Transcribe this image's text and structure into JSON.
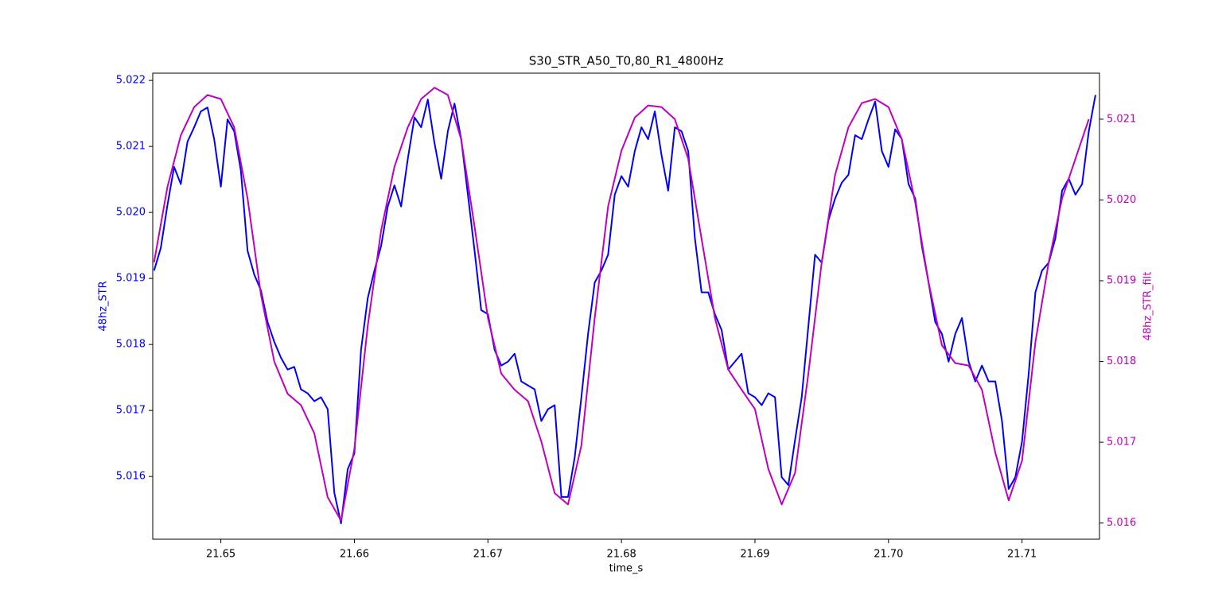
{
  "chart_data": {
    "type": "line",
    "title": "S30_STR_A50_T0,80_R1_4800Hz",
    "xlabel": "time_s",
    "ylabel": "48hz_STR",
    "y2label": "48hz_STR_filt",
    "xlim": [
      21.6449,
      21.7158
    ],
    "xticks": [
      21.65,
      21.66,
      21.67,
      21.68,
      21.69,
      {
        "value": 21.7,
        "label": "21.70"
      },
      21.71
    ],
    "ylim": [
      5.01505,
      5.02211
    ],
    "yticks": [
      5.016,
      5.017,
      5.018,
      5.019,
      {
        "value": 5.02,
        "label": "5.020"
      },
      5.021,
      5.022
    ],
    "ytick_color": "#0000ff",
    "y2lim": [
      5.0158,
      5.02157
    ],
    "y2ticks": [
      5.016,
      5.017,
      5.018,
      5.019,
      {
        "value": 5.02,
        "label": "5.020"
      },
      5.021
    ],
    "y2tick_color": "#bf00bf",
    "grid": false,
    "series": [
      {
        "color": "#0000ff",
        "x": [
          21.645,
          21.6455,
          21.646,
          21.6465,
          21.647,
          21.6475,
          21.648,
          21.6485,
          21.649,
          21.6495,
          21.65,
          21.6505,
          21.651,
          21.6515,
          21.652,
          21.6525,
          21.653,
          21.6535,
          21.654,
          21.6545,
          21.655,
          21.6555,
          21.656,
          21.6565,
          21.657,
          21.6575,
          21.658,
          21.6585,
          21.659,
          21.6595,
          21.66,
          21.6605,
          21.661,
          21.6615,
          21.662,
          21.6625,
          21.663,
          21.6635,
          21.664,
          21.6645,
          21.665,
          21.6655,
          21.666,
          21.6665,
          21.667,
          21.6675,
          21.668,
          21.6685,
          21.669,
          21.6695,
          21.67,
          21.6705,
          21.671,
          21.6715,
          21.672,
          21.6725,
          21.673,
          21.6735,
          21.674,
          21.6745,
          21.675,
          21.6755,
          21.676,
          21.6765,
          21.677,
          21.6775,
          21.678,
          21.6785,
          21.679,
          21.6795,
          21.68,
          21.6805,
          21.681,
          21.6815,
          21.682,
          21.6825,
          21.683,
          21.6835,
          21.684,
          21.6845,
          21.685,
          21.6855,
          21.686,
          21.6865,
          21.687,
          21.6875,
          21.688,
          21.6885,
          21.689,
          21.6895,
          21.69,
          21.6905,
          21.691,
          21.6915,
          21.692,
          21.6925,
          21.693,
          21.6935,
          21.694,
          21.6945,
          21.695,
          21.6955,
          21.696,
          21.6965,
          21.697,
          21.6975,
          21.698,
          21.6985,
          21.699,
          21.6995,
          21.7,
          21.7005,
          21.701,
          21.7015,
          21.702,
          21.7025,
          21.703,
          21.7035,
          21.704,
          21.7045,
          21.705,
          21.7055,
          21.706,
          21.7065,
          21.707,
          21.7075,
          21.708,
          21.7085,
          21.709,
          21.7095,
          21.71,
          21.7105,
          21.711,
          21.7115,
          21.712,
          21.7125,
          21.713,
          21.7135,
          21.714,
          21.7145,
          21.715,
          21.7155
        ],
        "values": [
          5.01912,
          5.01946,
          5.02011,
          5.02069,
          5.02043,
          5.02107,
          5.02129,
          5.02153,
          5.02159,
          5.02111,
          5.02039,
          5.02141,
          5.02123,
          5.02063,
          5.01942,
          5.01906,
          5.01882,
          5.01834,
          5.01804,
          5.0178,
          5.01762,
          5.01766,
          5.01732,
          5.01726,
          5.01714,
          5.0172,
          5.01702,
          5.01575,
          5.01529,
          5.01611,
          5.01635,
          5.01792,
          5.0187,
          5.01912,
          5.01949,
          5.02009,
          5.02041,
          5.02009,
          5.02081,
          5.02144,
          5.02129,
          5.02171,
          5.02105,
          5.02051,
          5.02123,
          5.02165,
          5.02111,
          5.02027,
          5.01942,
          5.01852,
          5.01846,
          5.01792,
          5.01768,
          5.01774,
          5.01786,
          5.01744,
          5.01738,
          5.01732,
          5.01684,
          5.01702,
          5.01708,
          5.01569,
          5.01569,
          5.01629,
          5.0172,
          5.01816,
          5.01894,
          5.01912,
          5.01936,
          5.02027,
          5.02055,
          5.02039,
          5.02093,
          5.02129,
          5.02111,
          5.02153,
          5.02087,
          5.02033,
          5.02129,
          5.02123,
          5.02093,
          5.01961,
          5.01879,
          5.01879,
          5.01846,
          5.01822,
          5.01762,
          5.01774,
          5.01786,
          5.01726,
          5.0172,
          5.01708,
          5.01726,
          5.0172,
          5.01599,
          5.01587,
          5.01655,
          5.0172,
          5.01828,
          5.01936,
          5.01924,
          5.01988,
          5.02021,
          5.02045,
          5.02057,
          5.02117,
          5.02111,
          5.02141,
          5.02168,
          5.02093,
          5.02069,
          5.02126,
          5.02111,
          5.02043,
          5.02021,
          5.01949,
          5.01894,
          5.01834,
          5.01816,
          5.01774,
          5.01816,
          5.0184,
          5.01774,
          5.01744,
          5.01768,
          5.01744,
          5.01744,
          5.01684,
          5.01581,
          5.01599,
          5.01653,
          5.01756,
          5.01879,
          5.01912,
          5.01924,
          5.01961,
          5.02033,
          5.02051,
          5.02027,
          5.02043,
          5.02123,
          5.02178
        ]
      },
      {
        "color": "#bf00bf",
        "axis": "y2",
        "x": [
          21.645,
          21.646,
          21.647,
          21.648,
          21.649,
          21.65,
          21.651,
          21.652,
          21.653,
          21.654,
          21.655,
          21.656,
          21.657,
          21.658,
          21.659,
          21.66,
          21.661,
          21.662,
          21.663,
          21.664,
          21.665,
          21.666,
          21.667,
          21.668,
          21.669,
          21.67,
          21.671,
          21.672,
          21.673,
          21.674,
          21.675,
          21.676,
          21.677,
          21.678,
          21.679,
          21.68,
          21.681,
          21.682,
          21.683,
          21.684,
          21.685,
          21.686,
          21.687,
          21.688,
          21.689,
          21.69,
          21.691,
          21.692,
          21.693,
          21.694,
          21.695,
          21.696,
          21.697,
          21.698,
          21.699,
          21.7,
          21.701,
          21.702,
          21.703,
          21.704,
          21.705,
          21.706,
          21.707,
          21.708,
          21.709,
          21.71,
          21.711,
          21.712,
          21.713,
          21.714,
          21.715
        ],
        "values": [
          5.01923,
          5.02016,
          5.0208,
          5.02115,
          5.0213,
          5.02125,
          5.0209,
          5.02002,
          5.01883,
          5.018,
          5.0176,
          5.01746,
          5.01711,
          5.01632,
          5.01603,
          5.01692,
          5.01844,
          5.01962,
          5.02041,
          5.0209,
          5.02125,
          5.02139,
          5.0213,
          5.02075,
          5.01967,
          5.01854,
          5.01785,
          5.01765,
          5.01751,
          5.01701,
          5.01637,
          5.01623,
          5.01696,
          5.01854,
          5.01992,
          5.02061,
          5.02102,
          5.02117,
          5.02115,
          5.021,
          5.02051,
          5.01952,
          5.01854,
          5.0179,
          5.01765,
          5.01741,
          5.01667,
          5.01623,
          5.01662,
          5.01785,
          5.01923,
          5.02031,
          5.0209,
          5.0212,
          5.02125,
          5.02115,
          5.02075,
          5.01997,
          5.01898,
          5.0182,
          5.01798,
          5.01795,
          5.01765,
          5.01687,
          5.01628,
          5.01677,
          5.01824,
          5.01923,
          5.02002,
          5.02051,
          5.021
        ]
      }
    ]
  }
}
